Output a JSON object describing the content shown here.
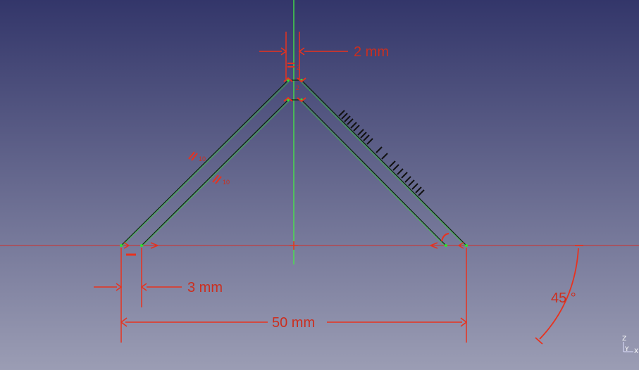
{
  "window": {
    "title": ""
  },
  "colors": {
    "background_top": "#33366a",
    "background_bottom": "#9b9db4",
    "sketch_line": "#0a2a0a",
    "sketch_highlight": "#33dd33",
    "axis_vertical": "#44ee44",
    "axis_horizontal": "#d0302a",
    "constraint": "#e8321e",
    "constraint_text": "#cc2e1e",
    "hatch": "#111111"
  },
  "dimensions": {
    "top_width": {
      "value": 2,
      "unit": "mm",
      "label": "2 mm"
    },
    "bottom_width": {
      "value": 3,
      "unit": "mm",
      "label": "3 mm"
    },
    "total_width": {
      "value": 50,
      "unit": "mm",
      "label": "50 mm"
    },
    "angle": {
      "value": 45,
      "unit": "°",
      "label": "45 °"
    }
  },
  "constraints": {
    "parallel_marker_index_outer": "10",
    "parallel_marker_index_inner": "10",
    "top_marker_index_a": "2",
    "top_marker_index_b": "2"
  },
  "icons": {
    "parallel": "parallel-constraint-icon",
    "horizontal": "horizontal-constraint-icon",
    "coincident": "coincident-constraint-icon",
    "axis_cross": "axis-cross-icon",
    "navigation_cube": "axis-navigator-icon"
  },
  "axis_indicator": {
    "x": "X",
    "y": "Y",
    "z": "Z"
  }
}
